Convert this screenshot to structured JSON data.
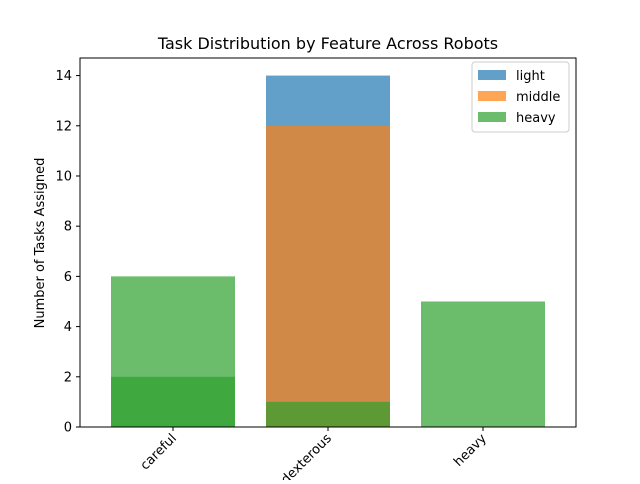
{
  "chart_data": {
    "type": "bar",
    "title": "Task Distribution by Feature Across Robots",
    "xlabel": "",
    "ylabel": "Number of Tasks Assigned",
    "categories": [
      "careful",
      "dexterous",
      "heavy"
    ],
    "ylim": [
      0,
      14.7
    ],
    "yticks": [
      "0",
      "2",
      "4",
      "6",
      "8",
      "10",
      "12",
      "14"
    ],
    "bar_mode": "overlapping, semi-transparent",
    "legend_position": "top-right",
    "grid": false,
    "series": [
      {
        "name": "light",
        "color": "#1f77b4",
        "values": [
          0,
          14,
          0
        ]
      },
      {
        "name": "middle",
        "color": "#ff7f0e",
        "values": [
          0,
          12,
          0
        ]
      },
      {
        "name": "heavy",
        "color": "#2ca02c",
        "values": [
          2,
          1,
          0
        ]
      },
      {
        "name": "heavy",
        "color": "#2ca02c",
        "values": [
          6,
          0,
          5
        ]
      }
    ]
  }
}
